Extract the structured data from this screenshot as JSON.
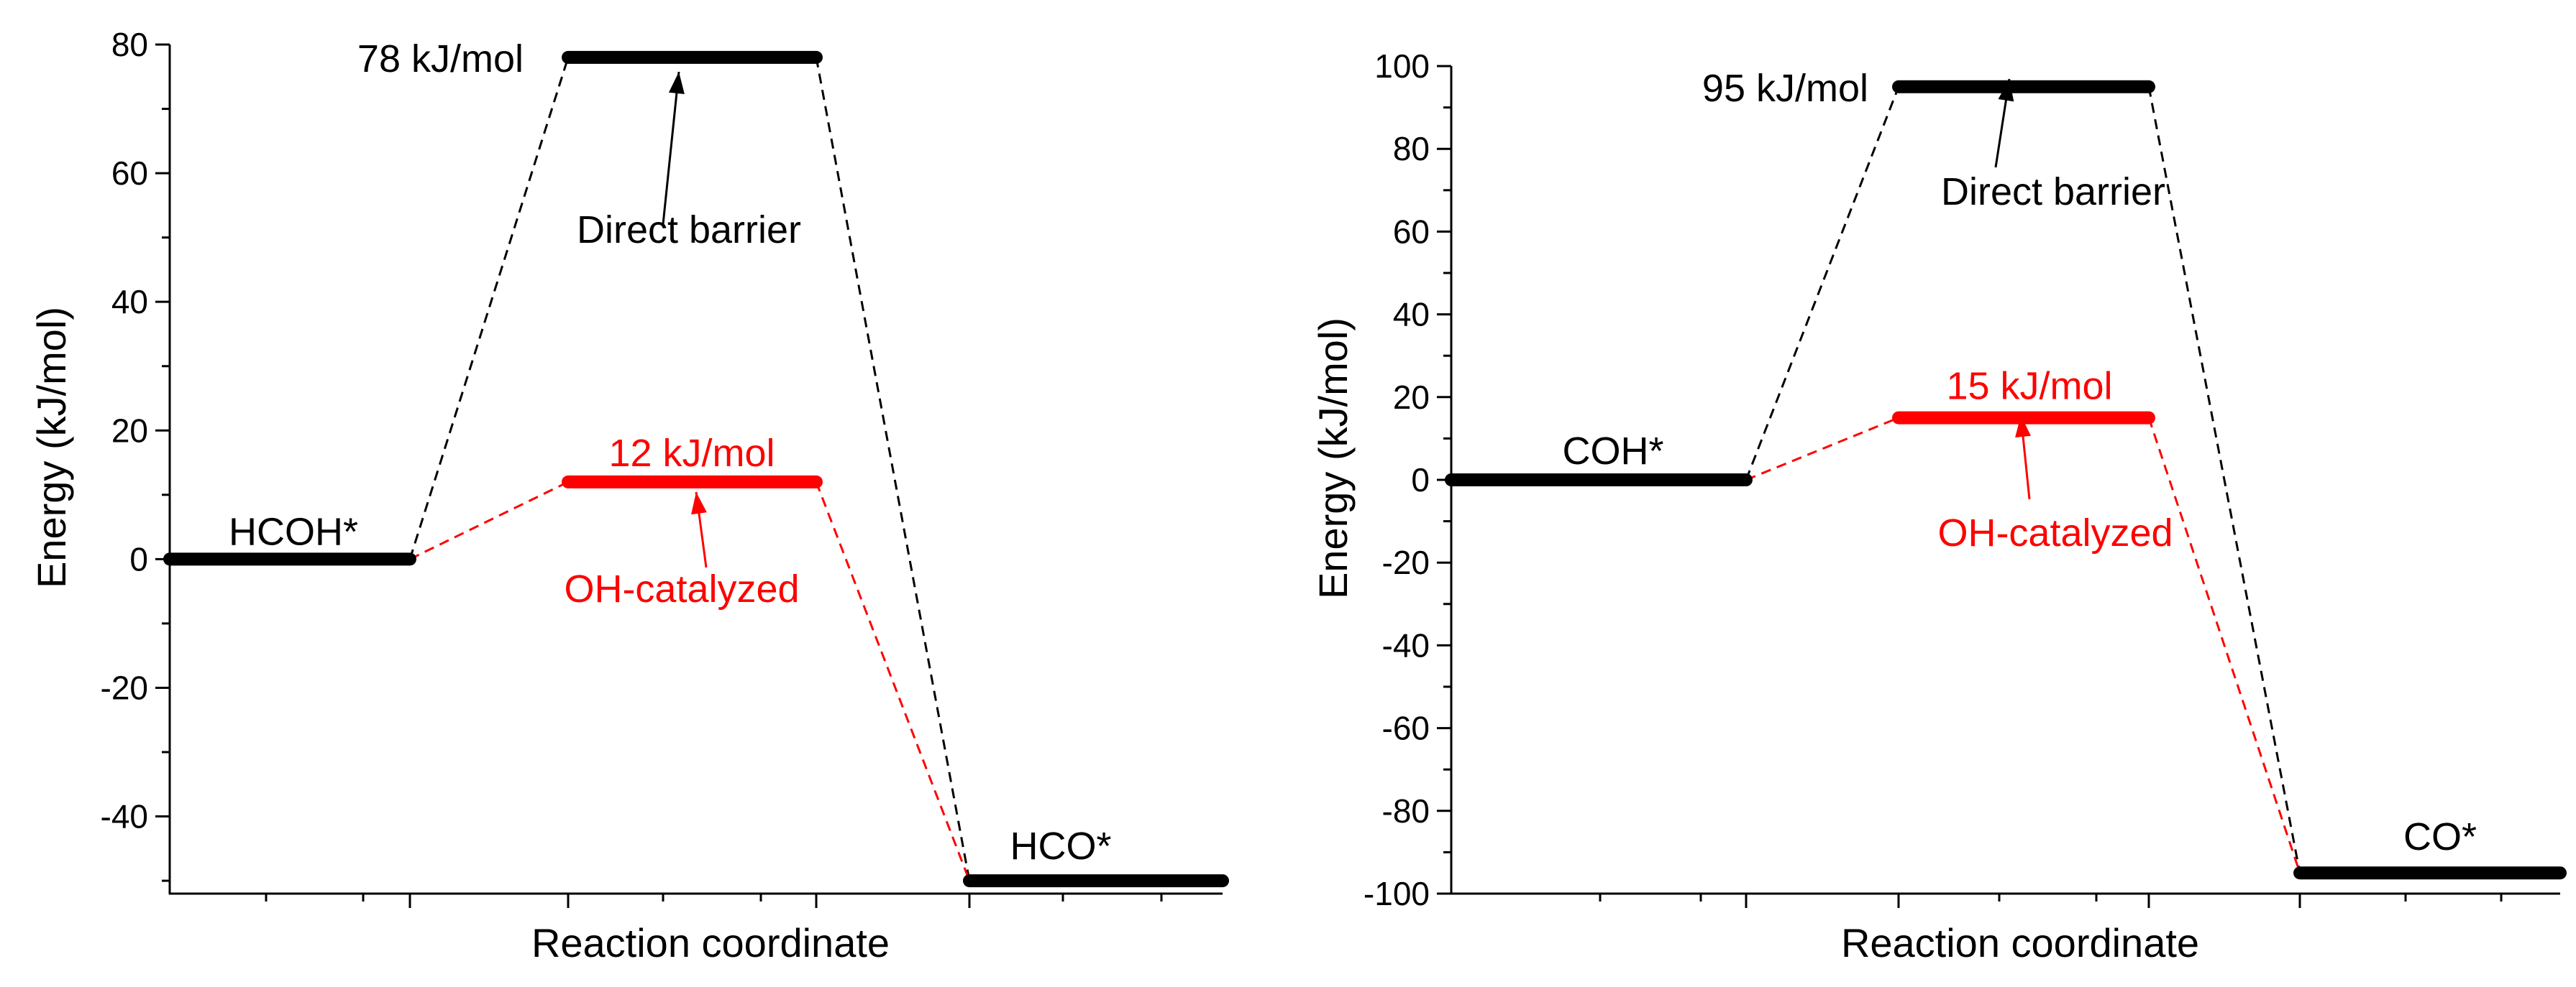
{
  "chart_data": [
    {
      "type": "line",
      "subtype": "energy-profile",
      "xlabel": "Reaction coordinate",
      "ylabel": "Energy (kJ/mol)",
      "ylim": [
        -52,
        80
      ],
      "yticks": [
        -40,
        -20,
        0,
        20,
        40,
        60,
        80
      ],
      "ytick_labels": [
        "-40",
        "-20",
        "0",
        "20",
        "40",
        "60",
        "80"
      ],
      "grid": false,
      "states": [
        {
          "name": "HCOH*",
          "energy": 0,
          "color": "#000000",
          "label": "HCOH*"
        },
        {
          "name": "TS-direct",
          "energy": 78,
          "color": "#000000",
          "label": "78 kJ/mol"
        },
        {
          "name": "TS-OH",
          "energy": 12,
          "color": "#ff0000",
          "label": "12 kJ/mol"
        },
        {
          "name": "HCO*",
          "energy": -50,
          "color": "#000000",
          "label": "HCO*"
        }
      ],
      "series": [
        {
          "name": "Direct barrier",
          "color": "#000000",
          "values": [
            0,
            78,
            -50
          ]
        },
        {
          "name": "OH-catalyzed",
          "color": "#ff0000",
          "values": [
            0,
            12,
            -50
          ]
        }
      ],
      "annotations": [
        {
          "text": "Direct barrier",
          "color": "#000000",
          "points_to": "78 kJ/mol"
        },
        {
          "text": "OH-catalyzed",
          "color": "#ff0000",
          "points_to": "12 kJ/mol"
        }
      ]
    },
    {
      "type": "line",
      "subtype": "energy-profile",
      "xlabel": "Reaction coordinate",
      "ylabel": "Energy (kJ/mol)",
      "ylim": [
        -100,
        100
      ],
      "yticks": [
        -100,
        -80,
        -60,
        -40,
        -20,
        0,
        20,
        40,
        60,
        80,
        100
      ],
      "ytick_labels": [
        "-100",
        "-80",
        "-60",
        "-40",
        "-20",
        "0",
        "20",
        "40",
        "60",
        "80",
        "100"
      ],
      "grid": false,
      "states": [
        {
          "name": "COH*",
          "energy": 0,
          "color": "#000000",
          "label": "COH*"
        },
        {
          "name": "TS-direct",
          "energy": 95,
          "color": "#000000",
          "label": "95 kJ/mol"
        },
        {
          "name": "TS-OH",
          "energy": 15,
          "color": "#ff0000",
          "label": "15 kJ/mol"
        },
        {
          "name": "CO*",
          "energy": -95,
          "color": "#000000",
          "label": "CO*"
        }
      ],
      "series": [
        {
          "name": "Direct barrier",
          "color": "#000000",
          "values": [
            0,
            95,
            -95
          ]
        },
        {
          "name": "OH-catalyzed",
          "color": "#ff0000",
          "values": [
            0,
            15,
            -95
          ]
        }
      ],
      "annotations": [
        {
          "text": "Direct barrier",
          "color": "#000000",
          "points_to": "95 kJ/mol"
        },
        {
          "text": "OH-catalyzed",
          "color": "#ff0000",
          "points_to": "15 kJ/mol"
        }
      ]
    }
  ]
}
